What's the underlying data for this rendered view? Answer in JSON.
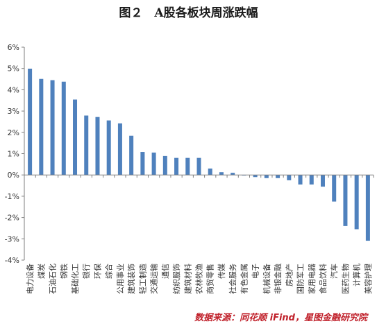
{
  "figure": {
    "title": "图２　A股各板块周涨跌幅",
    "source": "数据来源：同花顺 iFind，星图金融研究院"
  },
  "colors": {
    "bar": "#4f81bd",
    "axis": "#7f7f7f",
    "text": "#333333",
    "source": "#c0202a"
  },
  "chart_data": {
    "type": "bar",
    "title": "图２　A股各板块周涨跌幅",
    "xlabel": "",
    "ylabel": "",
    "ylim": [
      -4,
      6
    ],
    "yticks": [
      -4,
      -3,
      -2,
      -1,
      0,
      1,
      2,
      3,
      4,
      5,
      6
    ],
    "y_tick_format": "percent",
    "grid": false,
    "legend": "none",
    "categories": [
      "电力设备",
      "煤炭",
      "石油石化",
      "钢铁",
      "基础化工",
      "银行",
      "环保",
      "综合",
      "公用事业",
      "建筑装饰",
      "轻工制造",
      "交通运输",
      "通信",
      "纺织服饰",
      "建筑材料",
      "农林牧渔",
      "商贸零售",
      "传媒",
      "社会服务",
      "有色金属",
      "电子",
      "机械设备",
      "非银金融",
      "房地产",
      "国防军工",
      "家用电器",
      "食品饮料",
      "汽车",
      "医药生物",
      "计算机",
      "美容护理"
    ],
    "values": [
      4.99,
      4.51,
      4.45,
      4.38,
      3.54,
      2.79,
      2.72,
      2.56,
      2.42,
      1.84,
      1.08,
      1.05,
      0.89,
      0.8,
      0.8,
      0.8,
      0.3,
      0.13,
      0.1,
      -0.03,
      -0.1,
      -0.15,
      -0.15,
      -0.25,
      -0.45,
      -0.45,
      -0.55,
      -1.25,
      -2.4,
      -2.55,
      -3.09
    ]
  }
}
